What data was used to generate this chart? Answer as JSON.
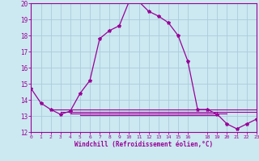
{
  "xlabel": "Windchill (Refroidissement éolien,°C)",
  "background_color": "#cce8f0",
  "line_color": "#990099",
  "grid_color": "#aaccdd",
  "x_data": [
    0,
    1,
    2,
    3,
    4,
    5,
    6,
    7,
    8,
    9,
    10,
    11,
    12,
    13,
    14,
    15,
    16,
    17,
    18,
    19,
    20,
    21,
    22,
    23
  ],
  "y_main": [
    14.7,
    13.8,
    13.4,
    13.1,
    13.3,
    14.4,
    15.2,
    17.8,
    18.3,
    18.6,
    20.1,
    20.1,
    19.5,
    19.2,
    18.8,
    18.0,
    16.4,
    13.4,
    13.4,
    13.1,
    12.5,
    12.2,
    12.5,
    12.8
  ],
  "flat_lines": [
    {
      "x_start": 2,
      "x_end": 23,
      "y": 13.4
    },
    {
      "x_start": 3,
      "x_end": 23,
      "y": 13.25
    },
    {
      "x_start": 4,
      "x_end": 20,
      "y": 13.15
    },
    {
      "x_start": 5,
      "x_end": 19,
      "y": 13.05
    }
  ],
  "ylim": [
    12,
    20
  ],
  "xlim": [
    0,
    23
  ],
  "yticks": [
    12,
    13,
    14,
    15,
    16,
    17,
    18,
    19,
    20
  ],
  "xticks": [
    0,
    1,
    2,
    3,
    4,
    5,
    6,
    7,
    8,
    9,
    10,
    11,
    12,
    13,
    14,
    15,
    16,
    18,
    19,
    20,
    21,
    22,
    23
  ],
  "xtick_labels": [
    "0",
    "1",
    "2",
    "3",
    "4",
    "5",
    "6",
    "7",
    "8",
    "9",
    "10",
    "11",
    "12",
    "13",
    "14",
    "15",
    "16",
    "18",
    "19",
    "20",
    "21",
    "22",
    "23"
  ],
  "ytick_labels": [
    "12",
    "13",
    "14",
    "15",
    "16",
    "17",
    "18",
    "19",
    "20"
  ]
}
